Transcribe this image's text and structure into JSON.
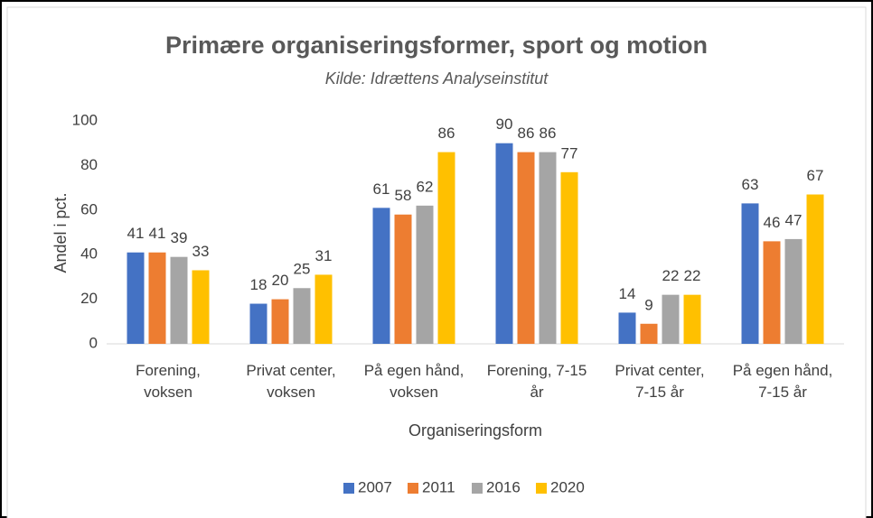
{
  "chart_data": {
    "type": "bar",
    "title": "Primære organiseringsformer, sport og motion",
    "subtitle": "Kilde: Idrættens Analyseinstitut",
    "x_label": "Organiseringsform",
    "y_label": "Andel i pct.",
    "categories": [
      "Forening,\nvoksen",
      "Privat center,\nvoksen",
      "På egen hånd,\nvoksen",
      "Forening, 7-15\når",
      "Privat center,\n7-15 år",
      "På egen hånd,\n7-15 år"
    ],
    "series": [
      {
        "name": "2007",
        "color": "#4472c4",
        "values": [
          41,
          18,
          61,
          90,
          14,
          63
        ]
      },
      {
        "name": "2011",
        "color": "#ed7d31",
        "values": [
          41,
          20,
          58,
          86,
          9,
          46
        ]
      },
      {
        "name": "2016",
        "color": "#a5a5a5",
        "values": [
          39,
          25,
          62,
          86,
          22,
          47
        ]
      },
      {
        "name": "2020",
        "color": "#ffc000",
        "values": [
          33,
          31,
          86,
          77,
          22,
          67
        ]
      }
    ],
    "ylim": [
      0,
      100
    ],
    "yticks": [
      0,
      20,
      40,
      60,
      80,
      100
    ],
    "grid": false,
    "legend": "bottom"
  }
}
